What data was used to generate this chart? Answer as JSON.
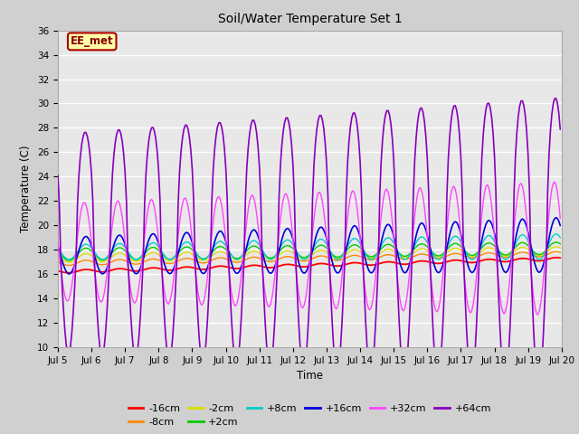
{
  "title": "Soil/Water Temperature Set 1",
  "xlabel": "Time",
  "ylabel": "Temperature (C)",
  "ylim": [
    10,
    36
  ],
  "yticks": [
    10,
    12,
    14,
    16,
    18,
    20,
    22,
    24,
    26,
    28,
    30,
    32,
    34,
    36
  ],
  "xtick_labels": [
    "Jul 5",
    "Jul 6",
    "Jul 7",
    "Jul 8",
    "Jul 9",
    "Jul 10",
    "Jul 11",
    "Jul 12",
    "Jul 13",
    "Jul 14",
    "Jul 15",
    "Jul 16",
    "Jul 17",
    "Jul 18",
    "Jul 19",
    "Jul 20"
  ],
  "watermark_text": "EE_met",
  "watermark_bg": "#ffffaa",
  "watermark_border": "#aa0000",
  "series_colors": {
    "-16cm": "#ff0000",
    "-8cm": "#ff8800",
    "-2cm": "#dddd00",
    "+2cm": "#00cc00",
    "+8cm": "#00cccc",
    "+16cm": "#0000dd",
    "+32cm": "#ff44ff",
    "+64cm": "#8800bb"
  },
  "plot_bg": "#e8e8e8",
  "fig_bg": "#d0d0d0",
  "grid_color": "#ffffff",
  "figsize": [
    6.4,
    4.8
  ],
  "dpi": 100
}
